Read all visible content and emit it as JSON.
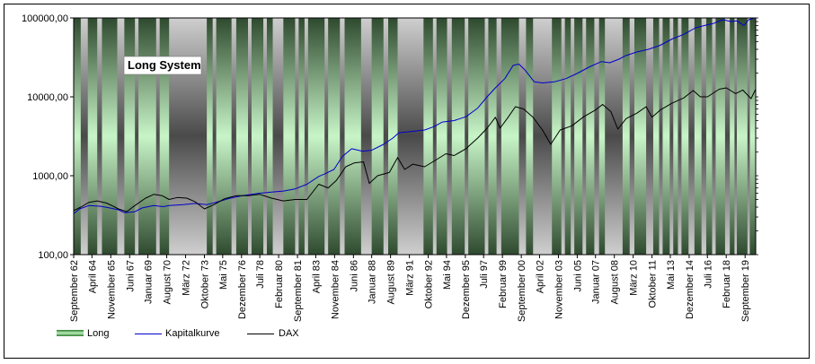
{
  "chart_data": {
    "type": "line",
    "title": "Long System",
    "y_scale": "log",
    "ylim": [
      100,
      100000
    ],
    "y_ticks": [
      "100000,00",
      "10000,00",
      "1000,00",
      "100,00"
    ],
    "y_tick_values": [
      100000,
      10000,
      1000,
      100
    ],
    "x_range": [
      1962.7,
      2020.6
    ],
    "x_ticks": [
      {
        "label": "September 62",
        "year": 1962.7
      },
      {
        "label": "April 64",
        "year": 1964.25
      },
      {
        "label": "November 65",
        "year": 1965.85
      },
      {
        "label": "Juni 67",
        "year": 1967.45
      },
      {
        "label": "Januar 69",
        "year": 1969.0
      },
      {
        "label": "August 70",
        "year": 1970.6
      },
      {
        "label": "März 72",
        "year": 1972.2
      },
      {
        "label": "Oktober 73",
        "year": 1973.8
      },
      {
        "label": "Mai 75",
        "year": 1975.35
      },
      {
        "label": "Dezember 76",
        "year": 1976.95
      },
      {
        "label": "Juli 78",
        "year": 1978.5
      },
      {
        "label": "Februar 80",
        "year": 1980.1
      },
      {
        "label": "September 81",
        "year": 1981.7
      },
      {
        "label": "April 83",
        "year": 1983.25
      },
      {
        "label": "November 84",
        "year": 1984.85
      },
      {
        "label": "Juni 86",
        "year": 1986.45
      },
      {
        "label": "Januar 88",
        "year": 1988.0
      },
      {
        "label": "August 89",
        "year": 1989.6
      },
      {
        "label": "März 91",
        "year": 1991.2
      },
      {
        "label": "Oktober 92",
        "year": 1992.8
      },
      {
        "label": "Mai 94",
        "year": 1994.35
      },
      {
        "label": "Dezember 95",
        "year": 1995.95
      },
      {
        "label": "Juli 97",
        "year": 1997.5
      },
      {
        "label": "Februar 99",
        "year": 1999.1
      },
      {
        "label": "September 00",
        "year": 2000.7
      },
      {
        "label": "April 02",
        "year": 2002.25
      },
      {
        "label": "November 03",
        "year": 2003.85
      },
      {
        "label": "Juni 05",
        "year": 2005.45
      },
      {
        "label": "Januar 07",
        "year": 2007.0
      },
      {
        "label": "August 08",
        "year": 2008.6
      },
      {
        "label": "März 10",
        "year": 2010.2
      },
      {
        "label": "Oktober 11",
        "year": 2011.8
      },
      {
        "label": "Mai 13",
        "year": 2013.35
      },
      {
        "label": "Dezember 14",
        "year": 2014.95
      },
      {
        "label": "Juli 16",
        "year": 2016.5
      },
      {
        "label": "Februar 18",
        "year": 2018.1
      },
      {
        "label": "September 19",
        "year": 2019.7
      }
    ],
    "out_of_market_periods": [
      [
        1963.3,
        1963.9
      ],
      [
        1964.7,
        1965.1
      ],
      [
        1966.4,
        1967.0
      ],
      [
        1967.9,
        1968.2
      ],
      [
        1969.7,
        1970.0
      ],
      [
        1970.8,
        1974.0
      ],
      [
        1974.5,
        1974.8
      ],
      [
        1976.1,
        1976.5
      ],
      [
        1977.5,
        1977.8
      ],
      [
        1978.8,
        1979.1
      ],
      [
        1979.6,
        1980.5
      ],
      [
        1981.5,
        1981.8
      ],
      [
        1982.3,
        1982.6
      ],
      [
        1984.0,
        1984.3
      ],
      [
        1985.3,
        1985.7
      ],
      [
        1987.1,
        1988.0
      ],
      [
        1989.0,
        1989.4
      ],
      [
        1990.2,
        1992.4
      ],
      [
        1993.2,
        1993.5
      ],
      [
        1994.4,
        1994.8
      ],
      [
        1995.9,
        1996.2
      ],
      [
        1997.6,
        1997.9
      ],
      [
        1998.6,
        1999.0
      ],
      [
        2000.5,
        2001.1
      ],
      [
        2001.7,
        2003.3
      ],
      [
        2004.1,
        2004.4
      ],
      [
        2004.9,
        2005.2
      ],
      [
        2005.9,
        2006.2
      ],
      [
        2006.9,
        2007.3
      ],
      [
        2007.8,
        2009.3
      ],
      [
        2009.9,
        2010.3
      ],
      [
        2011.3,
        2011.9
      ],
      [
        2012.4,
        2012.7
      ],
      [
        2013.3,
        2013.6
      ],
      [
        2014.0,
        2014.3
      ],
      [
        2014.9,
        2015.4
      ],
      [
        2016.0,
        2016.4
      ],
      [
        2016.9,
        2017.2
      ],
      [
        2018.0,
        2018.4
      ],
      [
        2018.8,
        2019.0
      ],
      [
        2019.9,
        2020.1
      ]
    ],
    "series": [
      {
        "name": "Kapitalkurve",
        "color": "#0000cc",
        "points": [
          [
            1962.7,
            330
          ],
          [
            1963.2,
            380
          ],
          [
            1964.0,
            420
          ],
          [
            1965.0,
            410
          ],
          [
            1965.8,
            390
          ],
          [
            1966.5,
            370
          ],
          [
            1967.0,
            340
          ],
          [
            1967.9,
            350
          ],
          [
            1968.5,
            390
          ],
          [
            1969.5,
            420
          ],
          [
            1970.3,
            405
          ],
          [
            1970.8,
            420
          ],
          [
            1972.0,
            430
          ],
          [
            1973.0,
            445
          ],
          [
            1974.0,
            430
          ],
          [
            1975.0,
            470
          ],
          [
            1976.0,
            520
          ],
          [
            1977.0,
            560
          ],
          [
            1978.5,
            600
          ],
          [
            1979.5,
            620
          ],
          [
            1980.5,
            640
          ],
          [
            1981.5,
            680
          ],
          [
            1982.5,
            780
          ],
          [
            1983.5,
            980
          ],
          [
            1984.0,
            1050
          ],
          [
            1984.8,
            1200
          ],
          [
            1985.5,
            1750
          ],
          [
            1986.3,
            2200
          ],
          [
            1987.2,
            2050
          ],
          [
            1988.0,
            2100
          ],
          [
            1989.0,
            2500
          ],
          [
            1989.8,
            3000
          ],
          [
            1990.3,
            3500
          ],
          [
            1991.5,
            3650
          ],
          [
            1992.5,
            3800
          ],
          [
            1993.3,
            4200
          ],
          [
            1994.0,
            4800
          ],
          [
            1995.0,
            5000
          ],
          [
            1996.0,
            5600
          ],
          [
            1997.0,
            7200
          ],
          [
            1997.8,
            10000
          ],
          [
            1998.5,
            13000
          ],
          [
            1999.3,
            17000
          ],
          [
            2000.0,
            25000
          ],
          [
            2000.5,
            26000
          ],
          [
            2001.0,
            22000
          ],
          [
            2001.8,
            15500
          ],
          [
            2002.5,
            15000
          ],
          [
            2003.5,
            15500
          ],
          [
            2004.5,
            17000
          ],
          [
            2005.5,
            20000
          ],
          [
            2006.5,
            24000
          ],
          [
            2007.5,
            28000
          ],
          [
            2008.2,
            27000
          ],
          [
            2009.0,
            30000
          ],
          [
            2009.5,
            33000
          ],
          [
            2010.5,
            37000
          ],
          [
            2011.5,
            40000
          ],
          [
            2012.5,
            45000
          ],
          [
            2013.5,
            54000
          ],
          [
            2014.5,
            62000
          ],
          [
            2015.5,
            75000
          ],
          [
            2016.5,
            82000
          ],
          [
            2017.0,
            85000
          ],
          [
            2017.8,
            95000
          ],
          [
            2018.5,
            90000
          ],
          [
            2019.0,
            92000
          ],
          [
            2019.6,
            80000
          ],
          [
            2020.0,
            95000
          ],
          [
            2020.5,
            100000
          ]
        ]
      },
      {
        "name": "DAX",
        "color": "#000000",
        "points": [
          [
            1962.7,
            360
          ],
          [
            1963.3,
            400
          ],
          [
            1964.0,
            460
          ],
          [
            1964.7,
            480
          ],
          [
            1965.5,
            450
          ],
          [
            1966.5,
            380
          ],
          [
            1967.2,
            350
          ],
          [
            1967.9,
            420
          ],
          [
            1968.8,
            520
          ],
          [
            1969.5,
            580
          ],
          [
            1970.2,
            560
          ],
          [
            1970.8,
            500
          ],
          [
            1971.5,
            530
          ],
          [
            1972.3,
            520
          ],
          [
            1973.0,
            470
          ],
          [
            1973.8,
            380
          ],
          [
            1974.6,
            430
          ],
          [
            1975.5,
            510
          ],
          [
            1976.5,
            560
          ],
          [
            1977.5,
            560
          ],
          [
            1978.5,
            580
          ],
          [
            1979.5,
            520
          ],
          [
            1980.5,
            480
          ],
          [
            1981.5,
            500
          ],
          [
            1982.5,
            500
          ],
          [
            1983.5,
            780
          ],
          [
            1984.3,
            700
          ],
          [
            1985.0,
            870
          ],
          [
            1985.8,
            1300
          ],
          [
            1986.5,
            1450
          ],
          [
            1987.3,
            1500
          ],
          [
            1987.8,
            800
          ],
          [
            1988.5,
            1000
          ],
          [
            1989.5,
            1100
          ],
          [
            1990.2,
            1700
          ],
          [
            1990.8,
            1200
          ],
          [
            1991.5,
            1400
          ],
          [
            1992.5,
            1300
          ],
          [
            1993.5,
            1600
          ],
          [
            1994.3,
            1900
          ],
          [
            1995.0,
            1800
          ],
          [
            1996.0,
            2200
          ],
          [
            1997.0,
            3000
          ],
          [
            1997.8,
            4000
          ],
          [
            1998.5,
            5500
          ],
          [
            1998.9,
            4000
          ],
          [
            1999.5,
            5300
          ],
          [
            2000.2,
            7500
          ],
          [
            2000.9,
            7000
          ],
          [
            2001.7,
            5500
          ],
          [
            2002.5,
            3800
          ],
          [
            2003.2,
            2500
          ],
          [
            2004.0,
            3800
          ],
          [
            2005.0,
            4300
          ],
          [
            2006.0,
            5600
          ],
          [
            2007.0,
            6800
          ],
          [
            2007.6,
            8000
          ],
          [
            2008.3,
            6500
          ],
          [
            2008.9,
            3900
          ],
          [
            2009.6,
            5300
          ],
          [
            2010.5,
            6200
          ],
          [
            2011.3,
            7500
          ],
          [
            2011.8,
            5500
          ],
          [
            2012.5,
            6800
          ],
          [
            2013.5,
            8300
          ],
          [
            2014.5,
            9700
          ],
          [
            2015.3,
            12000
          ],
          [
            2015.9,
            10000
          ],
          [
            2016.5,
            10000
          ],
          [
            2017.5,
            12500
          ],
          [
            2018.1,
            13000
          ],
          [
            2018.9,
            11000
          ],
          [
            2019.5,
            12200
          ],
          [
            2020.2,
            9500
          ],
          [
            2020.6,
            12500
          ]
        ]
      }
    ],
    "legend": [
      {
        "label": "Long",
        "kind": "band"
      },
      {
        "label": "Kapitalkurve",
        "kind": "line",
        "color": "#0000cc"
      },
      {
        "label": "DAX",
        "kind": "line",
        "color": "#000000"
      }
    ],
    "colors": {
      "band_light": "#c8f5c8",
      "band_dark": "#2f4a2f",
      "gap_light": "#cfcfcf",
      "gap_dark": "#4a4a4a"
    }
  }
}
